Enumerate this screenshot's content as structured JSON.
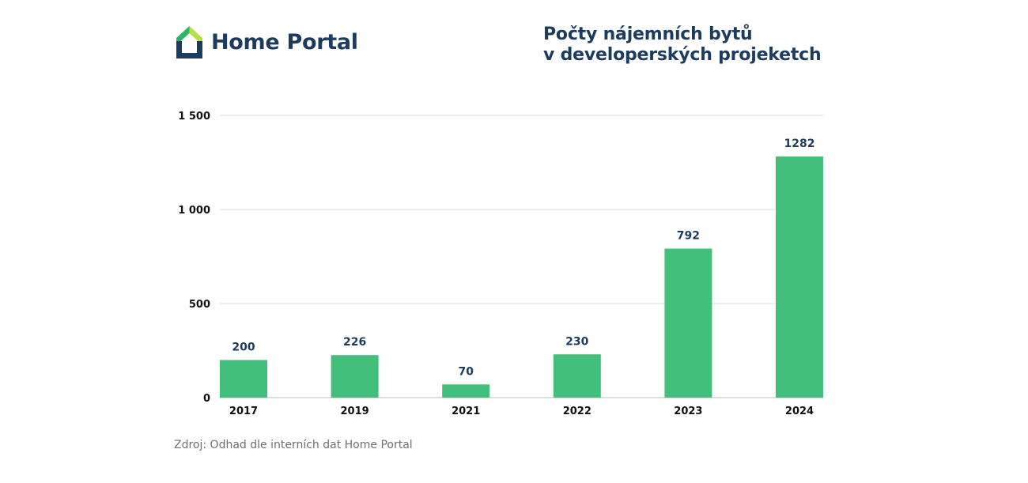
{
  "brand": {
    "name": "Home Portal",
    "logo_icon": "house-icon",
    "colors": {
      "navy": "#1d3b5e",
      "green": "#2fb36b",
      "lime": "#b7e04d"
    }
  },
  "title_lines": [
    "Počty nájemních bytů",
    "v developerských projeketch"
  ],
  "source": "Zdroj: Odhad dle interních dat Home Portal",
  "chart_data": {
    "type": "bar",
    "title": "Počty nájemních bytů v developerských projeketch",
    "categories": [
      "2017",
      "2019",
      "2021",
      "2022",
      "2023",
      "2024"
    ],
    "values": [
      200,
      226,
      70,
      230,
      792,
      1282
    ],
    "data_labels": [
      "200",
      "226",
      "70",
      "230",
      "792",
      "1282"
    ],
    "y_ticks": [
      0,
      500,
      1000,
      1500
    ],
    "y_tick_labels": [
      "0",
      "500",
      "1 000",
      "1 500"
    ],
    "ylim": [
      0,
      1500
    ],
    "xlabel": "",
    "ylabel": "",
    "grid": true,
    "bar_color": "#43bf7c",
    "grid_color": "#d9d9d9"
  }
}
